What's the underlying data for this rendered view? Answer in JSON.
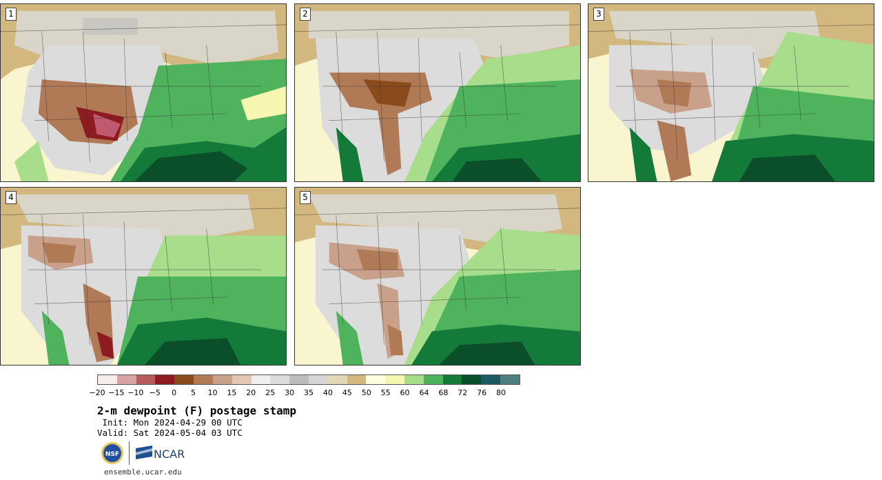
{
  "panels": [
    {
      "label": "1"
    },
    {
      "label": "2"
    },
    {
      "label": "3"
    },
    {
      "label": "4"
    },
    {
      "label": "5"
    }
  ],
  "colorbar": {
    "colors": [
      "#f6ecec",
      "#d8a3a3",
      "#b65c5c",
      "#8e1b20",
      "#8a4a1c",
      "#b07a56",
      "#c9a08a",
      "#e3c6b6",
      "#efefef",
      "#dcdcdc",
      "#bcbcbc",
      "#d6d6d6",
      "#e2d8b8",
      "#d2b77e",
      "#ffffe0",
      "#f6f6b0",
      "#a8dd8c",
      "#4fb25c",
      "#137a3a",
      "#0b4f2a",
      "#1e5a63",
      "#4f7f80"
    ],
    "tick_labels": [
      "−20",
      "−15",
      "−10",
      "−5",
      "0",
      "5",
      "10",
      "15",
      "20",
      "25",
      "30",
      "35",
      "40",
      "45",
      "50",
      "55",
      "60",
      "64",
      "68",
      "72",
      "76",
      "80"
    ]
  },
  "title": "2-m dewpoint (F) postage stamp",
  "init": " Init: Mon 2024-04-29 00 UTC",
  "valid": "Valid: Sat 2024-05-04 03 UTC",
  "logos": {
    "nsf_text": "NSF",
    "ncar_text": "NCAR"
  },
  "website": "ensemble.ucar.edu"
}
